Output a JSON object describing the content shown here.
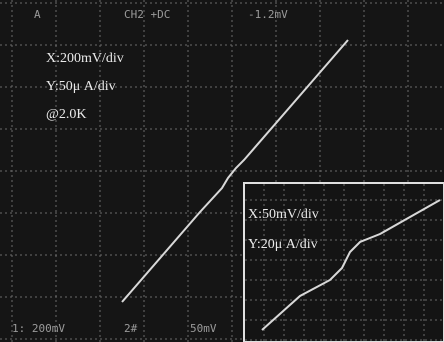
{
  "header": {
    "channel": "A",
    "coupling": "CH2 +DC",
    "offset": "-1.2mV"
  },
  "main_scale": {
    "x": "X:200mV/div",
    "y": "Y:50μ A/div",
    "resistance": "@2.0K"
  },
  "inset_scale": {
    "x": "X:50mV/div",
    "y": "Y:20μ A/div"
  },
  "footer": {
    "ch1": "1: 200mV",
    "ch2": "2#",
    "ch2_scale": "50mV"
  }
}
